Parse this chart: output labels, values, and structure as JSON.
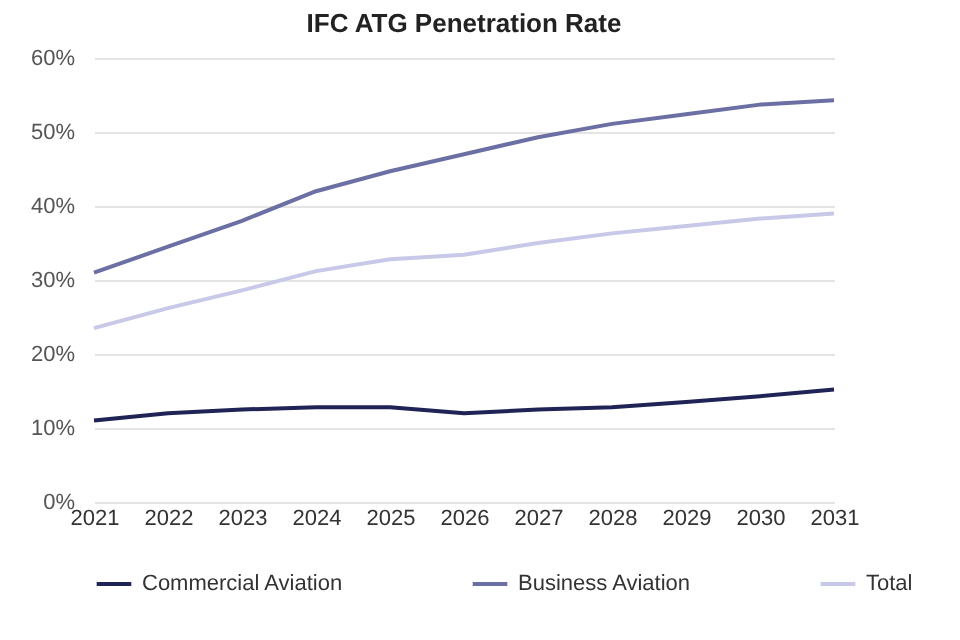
{
  "chart_data": {
    "type": "line",
    "title": "IFC ATG Penetration Rate",
    "categories": [
      "2021",
      "2022",
      "2023",
      "2024",
      "2025",
      "2026",
      "2027",
      "2028",
      "2029",
      "2030",
      "2031"
    ],
    "series": [
      {
        "name": "Commercial Aviation",
        "color": "#1f2355",
        "values": [
          11,
          12,
          12.5,
          12.8,
          12.8,
          12,
          12.5,
          12.8,
          13.5,
          14.3,
          15.2
        ]
      },
      {
        "name": "Business Aviation",
        "color": "#6b6fa3",
        "values": [
          31,
          34.5,
          38,
          42,
          44.7,
          47,
          49.3,
          51.1,
          52.4,
          53.7,
          54.3
        ]
      },
      {
        "name": "Total",
        "color": "#c8c8e8",
        "values": [
          23.5,
          26.2,
          28.6,
          31.2,
          32.8,
          33.4,
          35,
          36.3,
          37.3,
          38.3,
          39
        ]
      }
    ],
    "ylim": [
      0,
      60
    ],
    "yticks": [
      {
        "value": 0,
        "label": "0%"
      },
      {
        "value": 10,
        "label": "10%"
      },
      {
        "value": 20,
        "label": "20%"
      },
      {
        "value": 30,
        "label": "30%"
      },
      {
        "value": 40,
        "label": "40%"
      },
      {
        "value": 50,
        "label": "50%"
      },
      {
        "value": 60,
        "label": "60%"
      }
    ],
    "grid": "y",
    "legend": "bottom",
    "marker": "none",
    "line_style": "solid"
  }
}
